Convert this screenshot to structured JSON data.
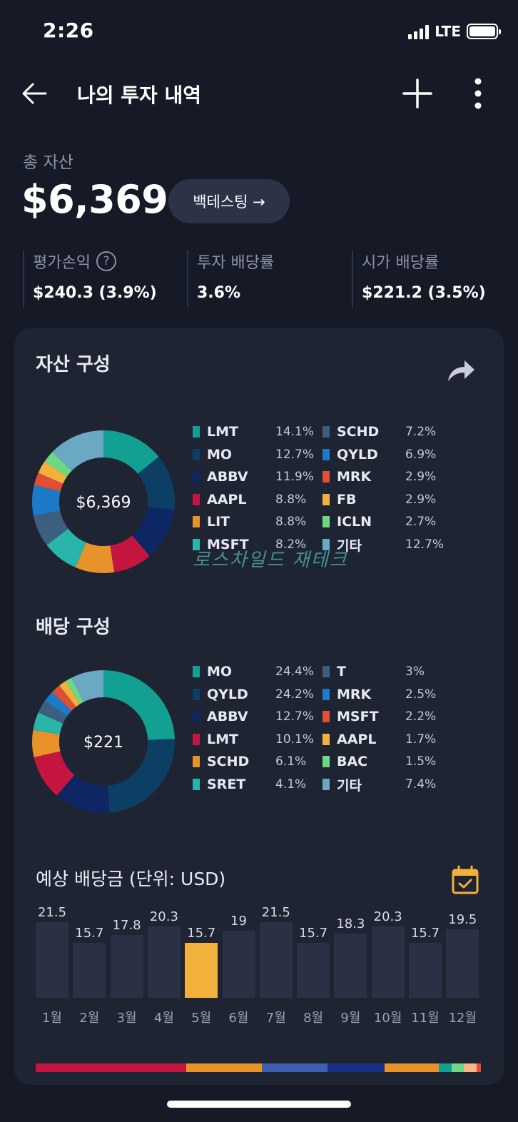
{
  "status": {
    "time": "2:26",
    "network": "LTE"
  },
  "header": {
    "title": "나의 투자 내역"
  },
  "summary": {
    "total_label": "총 자산",
    "total_value": "$6,369",
    "backtest_label": "백테스팅 →",
    "stats": [
      {
        "label": "평가손익",
        "value": "$240.3 (3.9%)",
        "has_help": true
      },
      {
        "label": "투자 배당률",
        "value": "3.6%"
      },
      {
        "label": "시가 배당률",
        "value": "$221.2 (3.5%)"
      }
    ],
    "help_glyph": "?"
  },
  "asset_section": {
    "title": "자산 구성",
    "center_label": "$6,369",
    "watermark": "로스차일드 재테크",
    "items": [
      {
        "name": "LMT",
        "pct": "14.1%",
        "value": 14.1,
        "color": "#12a092"
      },
      {
        "name": "MO",
        "pct": "12.7%",
        "value": 12.7,
        "color": "#0d3e63"
      },
      {
        "name": "ABBV",
        "pct": "11.9%",
        "value": 11.9,
        "color": "#0e2663"
      },
      {
        "name": "AAPL",
        "pct": "8.8%",
        "value": 8.8,
        "color": "#c41540"
      },
      {
        "name": "LIT",
        "pct": "8.8%",
        "value": 8.8,
        "color": "#e8922a"
      },
      {
        "name": "MSFT",
        "pct": "8.2%",
        "value": 8.2,
        "color": "#2ab5ab"
      },
      {
        "name": "SCHD",
        "pct": "7.2%",
        "value": 7.2,
        "color": "#3d5f7f"
      },
      {
        "name": "QYLD",
        "pct": "6.9%",
        "value": 6.9,
        "color": "#1b7bc7"
      },
      {
        "name": "MRK",
        "pct": "2.9%",
        "value": 2.9,
        "color": "#e04e35"
      },
      {
        "name": "FB",
        "pct": "2.9%",
        "value": 2.9,
        "color": "#f2b13d"
      },
      {
        "name": "ICLN",
        "pct": "2.7%",
        "value": 2.7,
        "color": "#6cd884"
      },
      {
        "name": "기타",
        "pct": "12.7%",
        "value": 12.7,
        "color": "#6aa8c4"
      }
    ]
  },
  "dividend_section": {
    "title": "배당 구성",
    "center_label": "$221",
    "items": [
      {
        "name": "MO",
        "pct": "24.4%",
        "value": 24.4,
        "color": "#12a092"
      },
      {
        "name": "QYLD",
        "pct": "24.2%",
        "value": 24.2,
        "color": "#0d3e63"
      },
      {
        "name": "ABBV",
        "pct": "12.7%",
        "value": 12.7,
        "color": "#0e2663"
      },
      {
        "name": "LMT",
        "pct": "10.1%",
        "value": 10.1,
        "color": "#c41540"
      },
      {
        "name": "SCHD",
        "pct": "6.1%",
        "value": 6.1,
        "color": "#e8922a"
      },
      {
        "name": "SRET",
        "pct": "4.1%",
        "value": 4.1,
        "color": "#2ab5ab"
      },
      {
        "name": "T",
        "pct": "3%",
        "value": 3.0,
        "color": "#3d5f7f"
      },
      {
        "name": "MRK",
        "pct": "2.5%",
        "value": 2.5,
        "color": "#1b7bc7"
      },
      {
        "name": "MSFT",
        "pct": "2.2%",
        "value": 2.2,
        "color": "#e04e35"
      },
      {
        "name": "AAPL",
        "pct": "1.7%",
        "value": 1.7,
        "color": "#f2b13d"
      },
      {
        "name": "BAC",
        "pct": "1.5%",
        "value": 1.5,
        "color": "#6cd884"
      },
      {
        "name": "기타",
        "pct": "7.4%",
        "value": 7.4,
        "color": "#6aa8c4"
      }
    ]
  },
  "expected_dividend": {
    "title": "예상 배당금 (단위: USD)",
    "highlight_month": "5월"
  },
  "chart_data": {
    "type": "bar",
    "title": "예상 배당금 (단위: USD)",
    "categories": [
      "1월",
      "2월",
      "3월",
      "4월",
      "5월",
      "6월",
      "7월",
      "8월",
      "9월",
      "10월",
      "11월",
      "12월"
    ],
    "values": [
      21.5,
      15.7,
      17.8,
      20.3,
      15.7,
      19,
      21.5,
      15.7,
      18.3,
      20.3,
      15.7,
      19.5
    ],
    "value_labels": [
      "21.5",
      "15.7",
      "17.8",
      "20.3",
      "15.7",
      "19",
      "21.5",
      "15.7",
      "18.3",
      "20.3",
      "15.7",
      "19.5"
    ],
    "ylim": [
      0,
      21.5
    ],
    "grid": false
  },
  "stack_bar": {
    "segments": [
      {
        "value": 33.8,
        "color": "#c41540"
      },
      {
        "value": 17,
        "color": "#e8922a"
      },
      {
        "value": 14.8,
        "color": "#3f5fb0"
      },
      {
        "value": 12.8,
        "color": "#1c2f86"
      },
      {
        "value": 12.2,
        "color": "#e8922a"
      },
      {
        "value": 2.8,
        "color": "#12a092"
      },
      {
        "value": 2.8,
        "color": "#6cd884"
      },
      {
        "value": 2.8,
        "color": "#f5b48a"
      },
      {
        "value": 1,
        "color": "#e04e35"
      }
    ]
  }
}
